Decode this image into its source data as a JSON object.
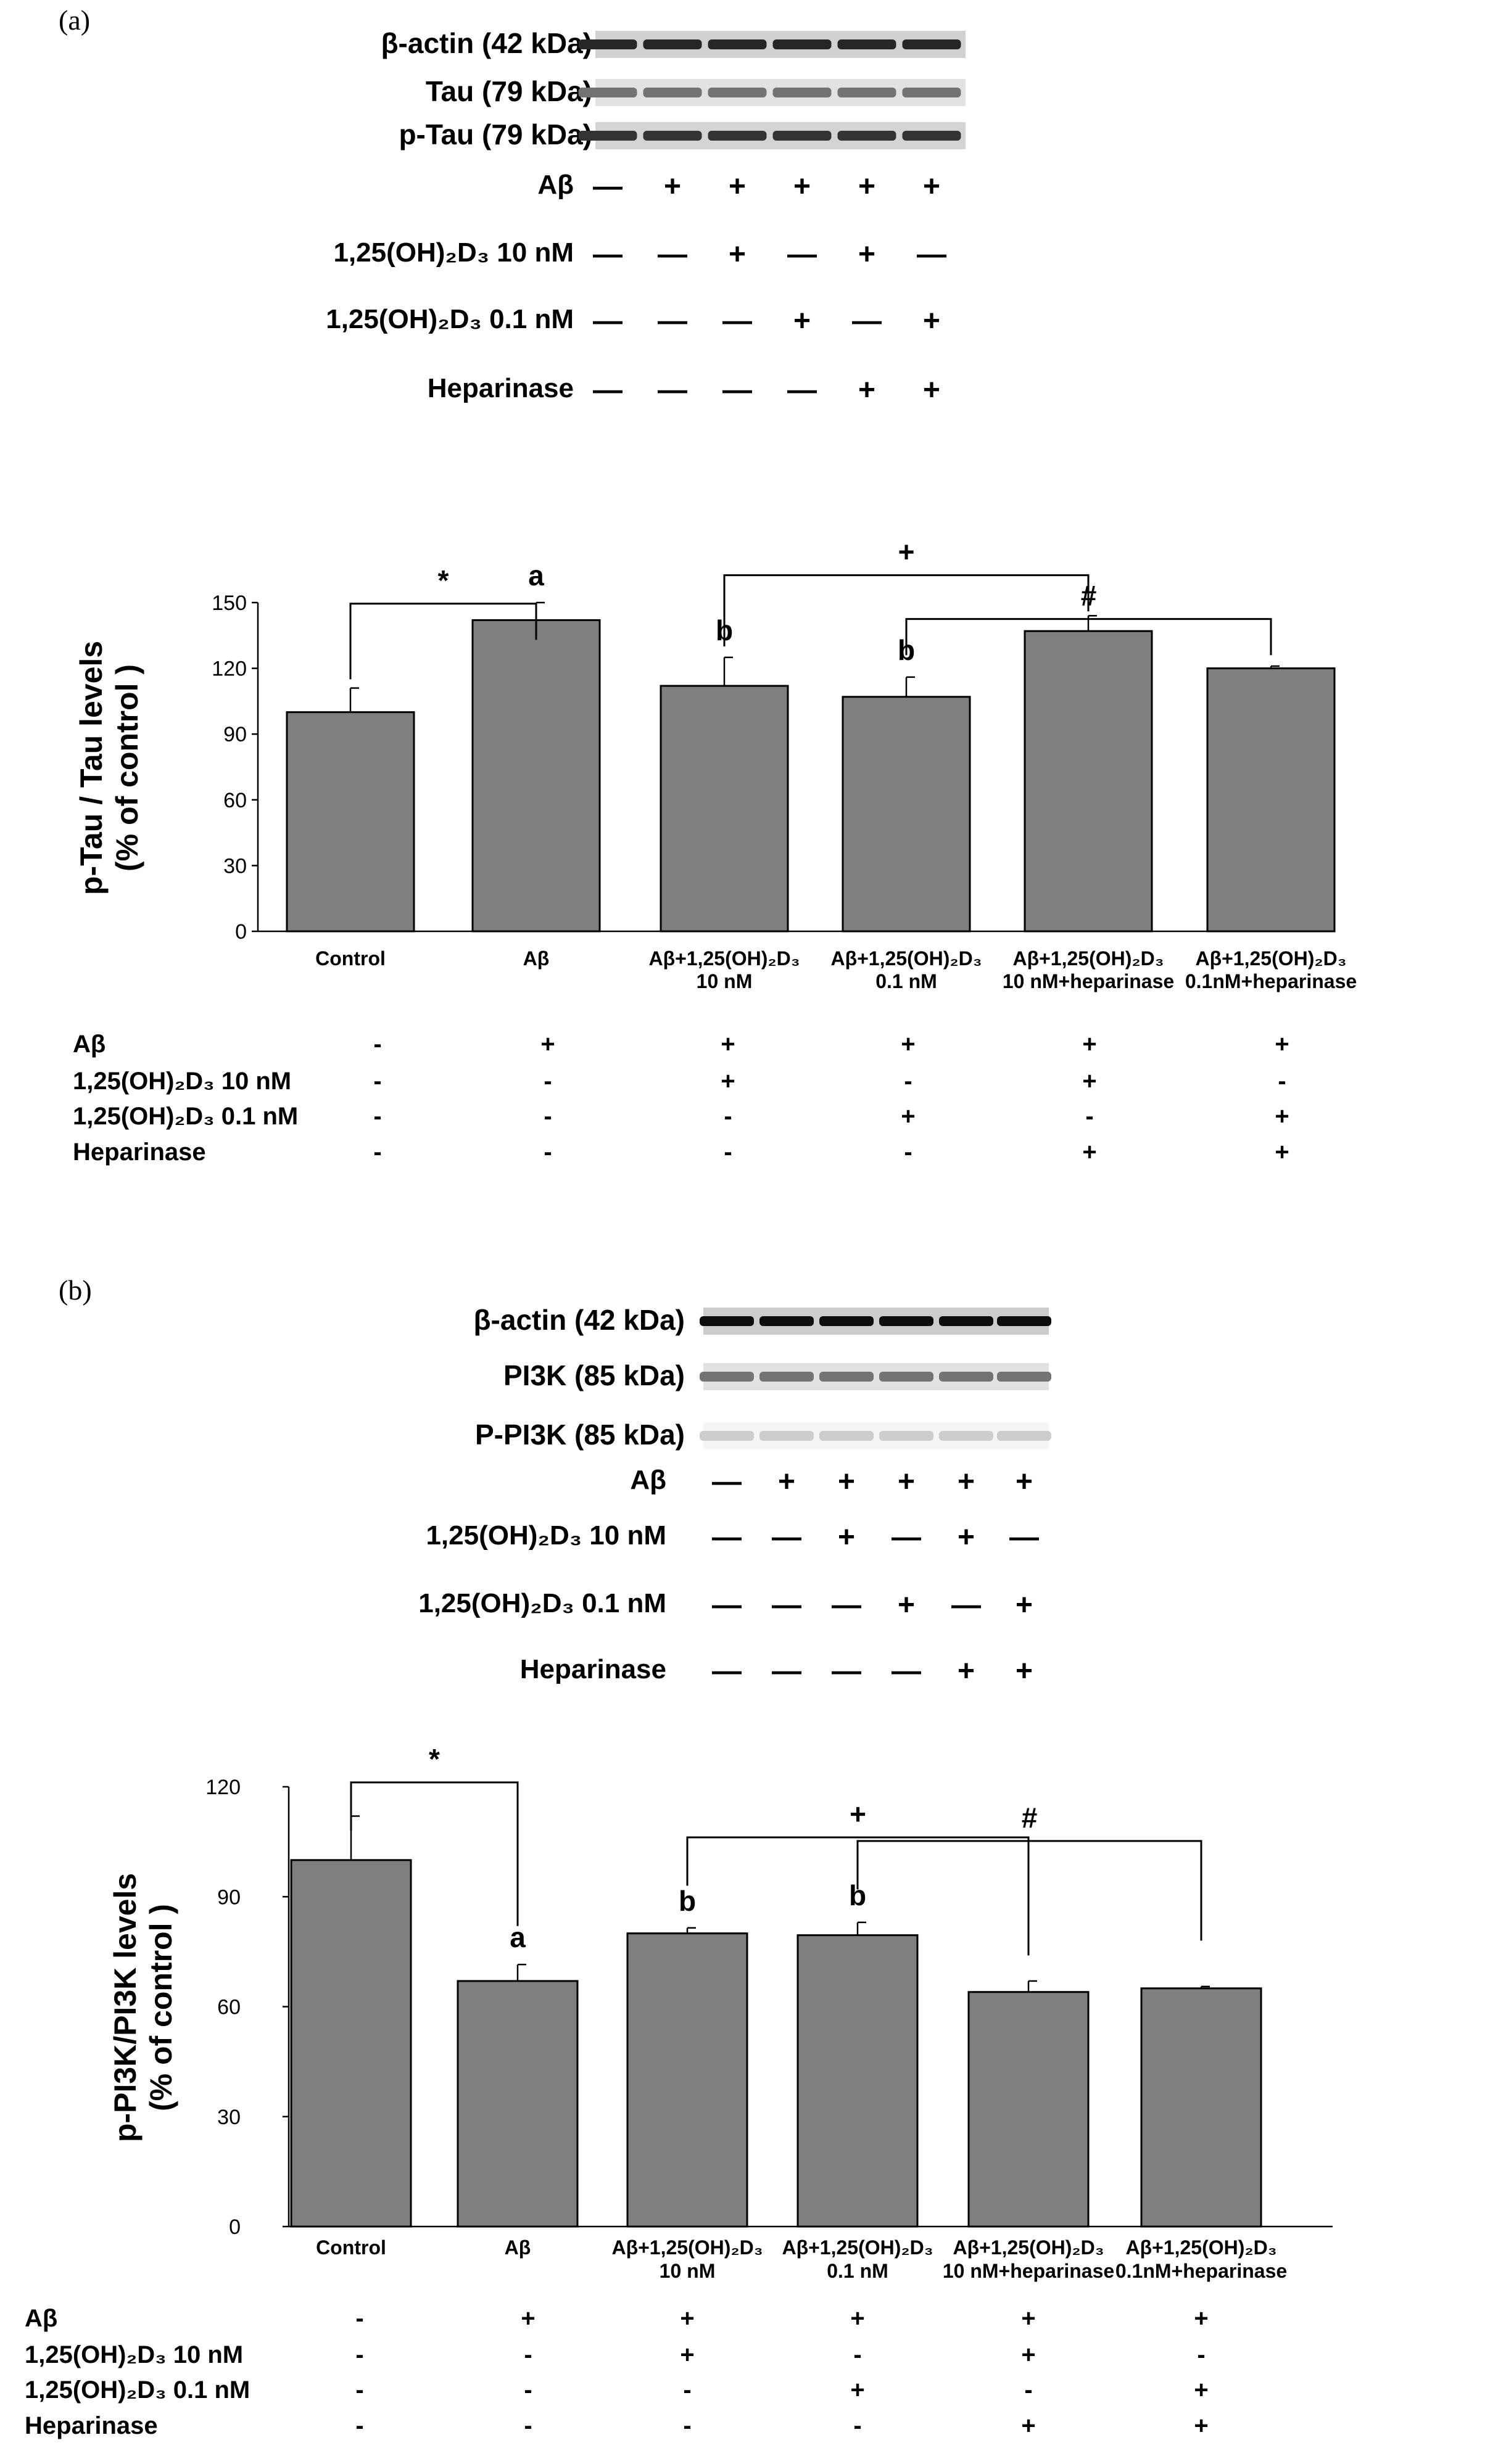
{
  "panels": [
    {
      "label": "(a)",
      "blots": [
        {
          "label": "β-actin (42 kDa)",
          "darkness": 0.85
        },
        {
          "label": "Tau (79 kDa)",
          "darkness": 0.55
        },
        {
          "label": "p-Tau (79 kDa)",
          "darkness": 0.8
        }
      ],
      "blot_conditions": [
        {
          "label": "Aβ",
          "marks": [
            "—",
            "+",
            "+",
            "+",
            "+",
            "+"
          ]
        },
        {
          "label": "1,25(OH)₂D₃ 10 nM",
          "marks": [
            "—",
            "—",
            "+",
            "—",
            "+",
            "—"
          ]
        },
        {
          "label": "1,25(OH)₂D₃ 0.1 nM",
          "marks": [
            "—",
            "—",
            "—",
            "+",
            "—",
            "+"
          ]
        },
        {
          "label": "Heparinase",
          "marks": [
            "—",
            "—",
            "—",
            "—",
            "+",
            "+"
          ]
        }
      ],
      "chart_data": {
        "type": "bar",
        "ylabel": "p-Tau / Tau levels (% of control )",
        "ylabel_lines": [
          "p-Tau / Tau levels",
          "(% of control )"
        ],
        "ylim": [
          0,
          150
        ],
        "yticks": [
          0,
          30,
          60,
          90,
          120,
          150
        ],
        "categories": [
          {
            "line1": "Control",
            "line2": ""
          },
          {
            "line1": "Aβ",
            "line2": ""
          },
          {
            "line1": "Aβ+1,25(OH)₂D₃",
            "line2": "10 nM"
          },
          {
            "line1": "Aβ+1,25(OH)₂D₃",
            "line2": "0.1 nM"
          },
          {
            "line1": "Aβ+1,25(OH)₂D₃",
            "line2": "10 nM+heparinase"
          },
          {
            "line1": "Aβ+1,25(OH)₂D₃",
            "line2": "0.1nM+heparinase"
          }
        ],
        "values": [
          100,
          142,
          112,
          107,
          137,
          120
        ],
        "errors": [
          11,
          8,
          13,
          9,
          7,
          1
        ],
        "letters": [
          "",
          "a",
          "b",
          "b",
          "",
          ""
        ],
        "significance": [
          {
            "symbol": "*",
            "from": 0,
            "to": 1,
            "from_value": 115,
            "to_value": 133
          },
          {
            "symbol": "+",
            "from": 2,
            "to": 4,
            "from_value": 130,
            "to_value": 146
          },
          {
            "symbol": "#",
            "from": 3,
            "to": 5,
            "from_value": 126,
            "to_value": 126
          }
        ]
      },
      "treatment_table": [
        {
          "label": "Aβ",
          "marks": [
            "-",
            "+",
            "+",
            "+",
            "+",
            "+"
          ]
        },
        {
          "label": "1,25(OH)₂D₃ 10 nM",
          "marks": [
            "-",
            "-",
            "+",
            "-",
            "+",
            "-"
          ]
        },
        {
          "label": "1,25(OH)₂D₃ 0.1 nM",
          "marks": [
            "-",
            "-",
            "-",
            "+",
            "-",
            "+"
          ]
        },
        {
          "label": "Heparinase",
          "marks": [
            "-",
            "-",
            "-",
            "-",
            "+",
            "+"
          ]
        }
      ]
    },
    {
      "label": "(b)",
      "blots": [
        {
          "label": "β-actin (42 kDa)",
          "darkness": 0.95
        },
        {
          "label": "PI3K (85 kDa)",
          "darkness": 0.55
        },
        {
          "label": "P-PI3K (85 kDa)",
          "darkness": 0.2
        }
      ],
      "blot_conditions": [
        {
          "label": "Aβ",
          "marks": [
            "—",
            "+",
            "+",
            "+",
            "+",
            "+"
          ]
        },
        {
          "label": "1,25(OH)₂D₃ 10 nM",
          "marks": [
            "—",
            "—",
            "+",
            "—",
            "+",
            "—"
          ]
        },
        {
          "label": "1,25(OH)₂D₃ 0.1 nM",
          "marks": [
            "—",
            "—",
            "—",
            "+",
            "—",
            "+"
          ]
        },
        {
          "label": "Heparinase",
          "marks": [
            "—",
            "—",
            "—",
            "—",
            "+",
            "+"
          ]
        }
      ],
      "chart_data": {
        "type": "bar",
        "ylabel": "p-PI3K/PI3K levels (% of control )",
        "ylabel_lines": [
          "p-PI3K/PI3K levels",
          "(% of control )"
        ],
        "ylim": [
          0,
          120
        ],
        "yticks": [
          0,
          30,
          60,
          90,
          120
        ],
        "categories": [
          {
            "line1": "Control",
            "line2": ""
          },
          {
            "line1": "Aβ",
            "line2": ""
          },
          {
            "line1": "Aβ+1,25(OH)₂D₃",
            "line2": "10 nM"
          },
          {
            "line1": "Aβ+1,25(OH)₂D₃",
            "line2": "0.1 nM"
          },
          {
            "line1": "Aβ+1,25(OH)₂D₃",
            "line2": "10 nM+heparinase"
          },
          {
            "line1": "Aβ+1,25(OH)₂D₃",
            "line2": "0.1nM+heparinase"
          }
        ],
        "values": [
          100,
          67,
          80,
          79.5,
          64,
          65
        ],
        "errors": [
          12,
          4.5,
          1.5,
          3.5,
          3,
          0.5
        ],
        "letters": [
          "",
          "a",
          "b",
          "b",
          "",
          ""
        ],
        "significance": [
          {
            "symbol": "*",
            "from": 0,
            "to": 1,
            "from_value": 108,
            "to_value": 82
          },
          {
            "symbol": "+",
            "from": 2,
            "to": 4,
            "from_value": 93,
            "to_value": 74
          },
          {
            "symbol": "#",
            "from": 3,
            "to": 5,
            "from_value": 92,
            "to_value": 78
          }
        ]
      },
      "treatment_table": [
        {
          "label": "Aβ",
          "marks": [
            "-",
            "+",
            "+",
            "+",
            "+",
            "+"
          ]
        },
        {
          "label": "1,25(OH)₂D₃ 10 nM",
          "marks": [
            "-",
            "-",
            "+",
            "-",
            "+",
            "-"
          ]
        },
        {
          "label": "1,25(OH)₂D₃ 0.1 nM",
          "marks": [
            "-",
            "-",
            "-",
            "+",
            "-",
            "+"
          ]
        },
        {
          "label": "Heparinase",
          "marks": [
            "-",
            "-",
            "-",
            "-",
            "+",
            "+"
          ]
        }
      ]
    }
  ]
}
